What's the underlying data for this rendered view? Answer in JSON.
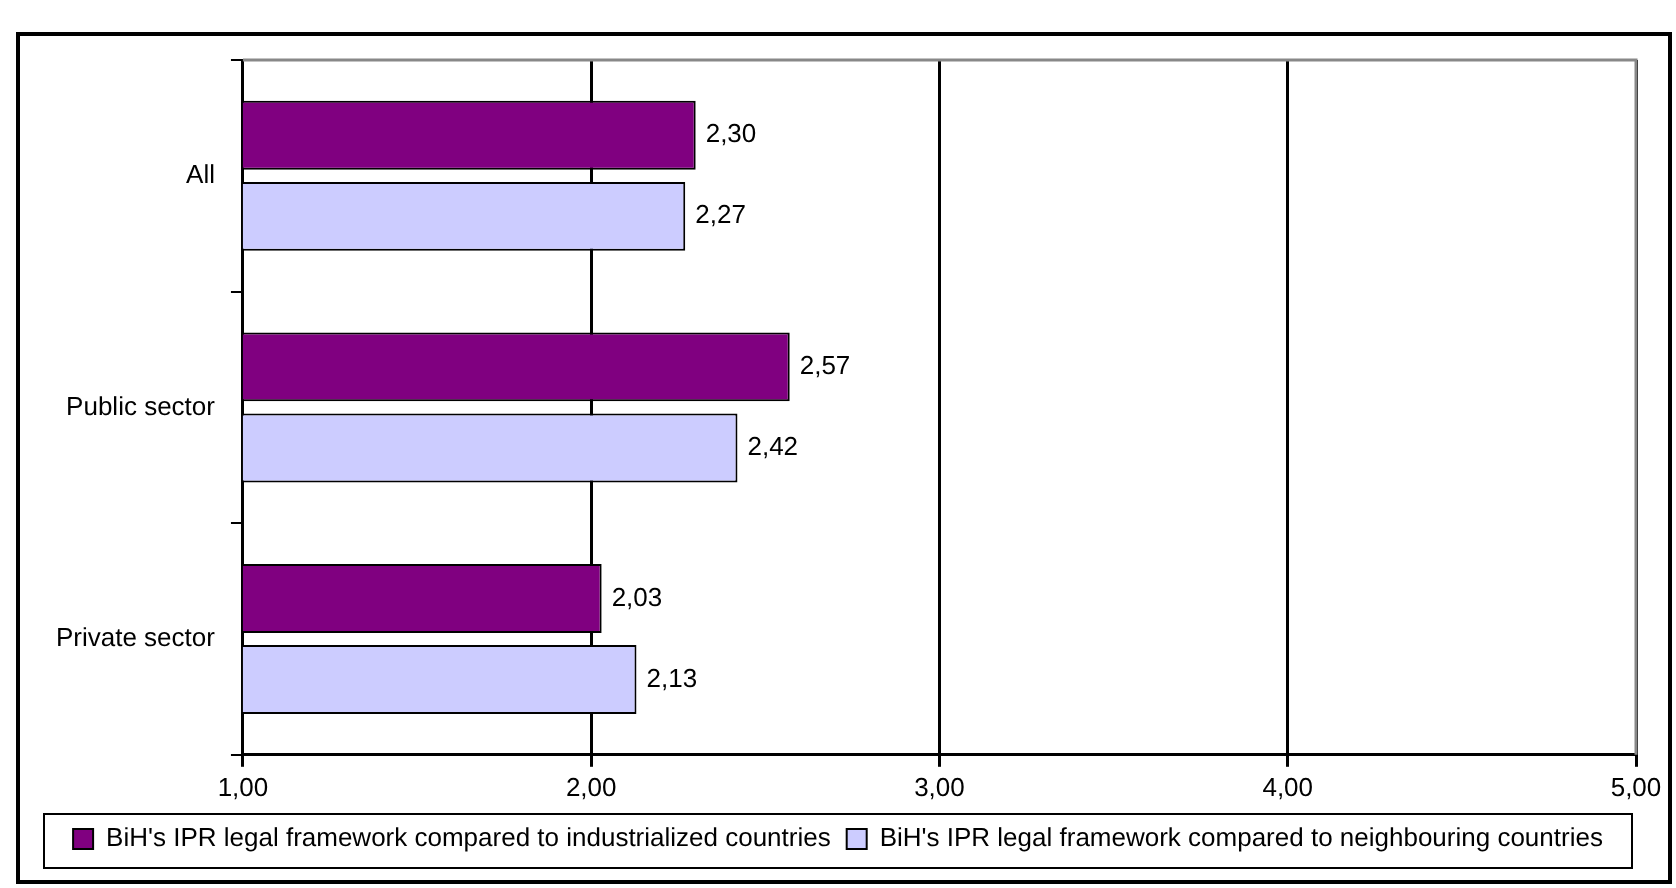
{
  "chart_data": {
    "type": "bar",
    "orientation": "horizontal",
    "categories": [
      "All",
      "Public sector",
      "Private sector"
    ],
    "series": [
      {
        "name": "BiH's IPR legal framework compared to industrialized countries",
        "color": "#800080",
        "values": [
          2.3,
          2.57,
          2.03
        ],
        "value_labels": [
          "2,30",
          "2,57",
          "2,03"
        ]
      },
      {
        "name": "BiH's IPR legal framework compared to neighbouring countries",
        "color": "#ccccff",
        "values": [
          2.27,
          2.42,
          2.13
        ],
        "value_labels": [
          "2,27",
          "2,42",
          "2,13"
        ]
      }
    ],
    "xlim": [
      1,
      5
    ],
    "xticks": [
      {
        "value": 1,
        "label": "1,00"
      },
      {
        "value": 2,
        "label": "2,00"
      },
      {
        "value": 3,
        "label": "3,00"
      },
      {
        "value": 4,
        "label": "4,00"
      },
      {
        "value": 5,
        "label": "5,00"
      }
    ],
    "grid": "x",
    "legend": "bottom"
  }
}
